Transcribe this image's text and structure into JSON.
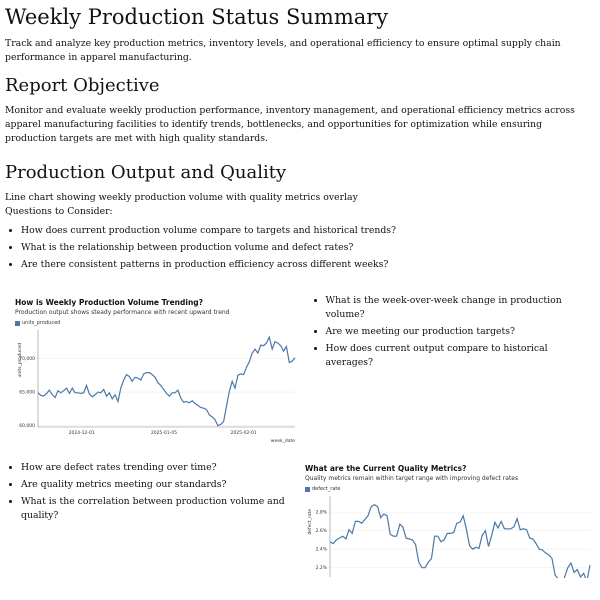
{
  "title": "Weekly Production Status Summary",
  "intro": "Track and analyze key production metrics, inventory levels, and operational efficiency to ensure optimal supply chain performance in apparel manufacturing.",
  "objective": {
    "heading": "Report Objective",
    "text": "Monitor and evaluate weekly production performance, inventory management, and operational efficiency metrics across apparel manufacturing facilities to identify trends, bottlenecks, and opportunities for optimization while ensuring production targets are met with high quality standards."
  },
  "section": {
    "heading": "Production Output and Quality",
    "desc": "Line chart showing weekly production volume with quality metrics overlay",
    "questions_label": "Questions to Consider:",
    "questions": [
      "How does current production volume compare to targets and historical trends?",
      "What is the relationship between production volume and defect rates?",
      "Are there consistent patterns in production efficiency across different weeks?"
    ]
  },
  "side_questions_1": [
    "What is the week-over-week change in production volume?",
    "Are we meeting our production targets?",
    "How does current output compare to historical averages?"
  ],
  "side_questions_2": [
    "How are defect rates trending over time?",
    "Are quality metrics meeting our standards?",
    "What is the correlation between production volume and quality?"
  ],
  "chart_data": [
    {
      "type": "line",
      "title": "How is Weekly Production Volume Trending?",
      "subtitle": "Production output shows steady performance with recent upward trend",
      "legend": "units_produced",
      "xlabel": "week_date",
      "ylabel": "units_produced",
      "color": "#4c78a8",
      "ylim": [
        59800,
        73500
      ],
      "yticks": [
        60000,
        65000,
        70000
      ],
      "ytick_labels": [
        "60,000",
        "65,000",
        "70,000"
      ],
      "xtick_labels": [
        "2024-12-01",
        "2025-01-05",
        "2025-02-01"
      ],
      "xtick_pos": [
        0.17,
        0.49,
        0.8
      ],
      "values": [
        64900,
        64500,
        64400,
        64800,
        65300,
        64600,
        64200,
        65200,
        64900,
        65200,
        65600,
        64800,
        65600,
        64900,
        64900,
        64800,
        64900,
        66000,
        64700,
        64300,
        64600,
        65000,
        64900,
        65400,
        64400,
        64900,
        64000,
        64600,
        63600,
        65600,
        66800,
        67600,
        67300,
        66600,
        67200,
        67100,
        66800,
        67700,
        67900,
        67900,
        67600,
        67200,
        66400,
        66000,
        65400,
        64800,
        64400,
        64900,
        64900,
        65300,
        64100,
        63500,
        63600,
        63400,
        63700,
        63300,
        63000,
        62700,
        62600,
        62400,
        61600,
        61300,
        60900,
        60000,
        60200,
        60600,
        62900,
        65100,
        66600,
        65600,
        67500,
        67700,
        67600,
        68700,
        69500,
        70800,
        71400,
        70800,
        72000,
        71900,
        72300,
        73200,
        71400,
        72500,
        72300,
        71900,
        71100,
        71800,
        69400,
        69600,
        70100
      ]
    },
    {
      "type": "line",
      "title": "What are the Current Quality Metrics?",
      "subtitle": "Quality metrics remain within target range with improving defect rates",
      "legend": "defect_rate",
      "ylabel": "defect_rate",
      "color": "#4c78a8",
      "ylim": [
        2.1,
        2.92
      ],
      "yticks": [
        2.2,
        2.4,
        2.6,
        2.8
      ],
      "ytick_labels": [
        "2.2%",
        "2.4%",
        "2.6%",
        "2.8%"
      ],
      "values": [
        2.48,
        2.46,
        2.5,
        2.52,
        2.54,
        2.51,
        2.61,
        2.57,
        2.7,
        2.7,
        2.68,
        2.72,
        2.76,
        2.86,
        2.88,
        2.86,
        2.74,
        2.78,
        2.76,
        2.56,
        2.54,
        2.54,
        2.67,
        2.64,
        2.52,
        2.51,
        2.5,
        2.45,
        2.26,
        2.2,
        2.2,
        2.26,
        2.3,
        2.54,
        2.54,
        2.48,
        2.5,
        2.57,
        2.57,
        2.58,
        2.68,
        2.69,
        2.76,
        2.62,
        2.44,
        2.4,
        2.42,
        2.41,
        2.55,
        2.6,
        2.43,
        2.55,
        2.69,
        2.63,
        2.7,
        2.62,
        2.62,
        2.62,
        2.64,
        2.73,
        2.61,
        2.62,
        2.61,
        2.52,
        2.51,
        2.46,
        2.4,
        2.39,
        2.36,
        2.34,
        2.3,
        2.12,
        2.08,
        2.0,
        2.1,
        2.2,
        2.25,
        2.15,
        2.18,
        2.1,
        2.14,
        2.05,
        2.23
      ]
    }
  ]
}
